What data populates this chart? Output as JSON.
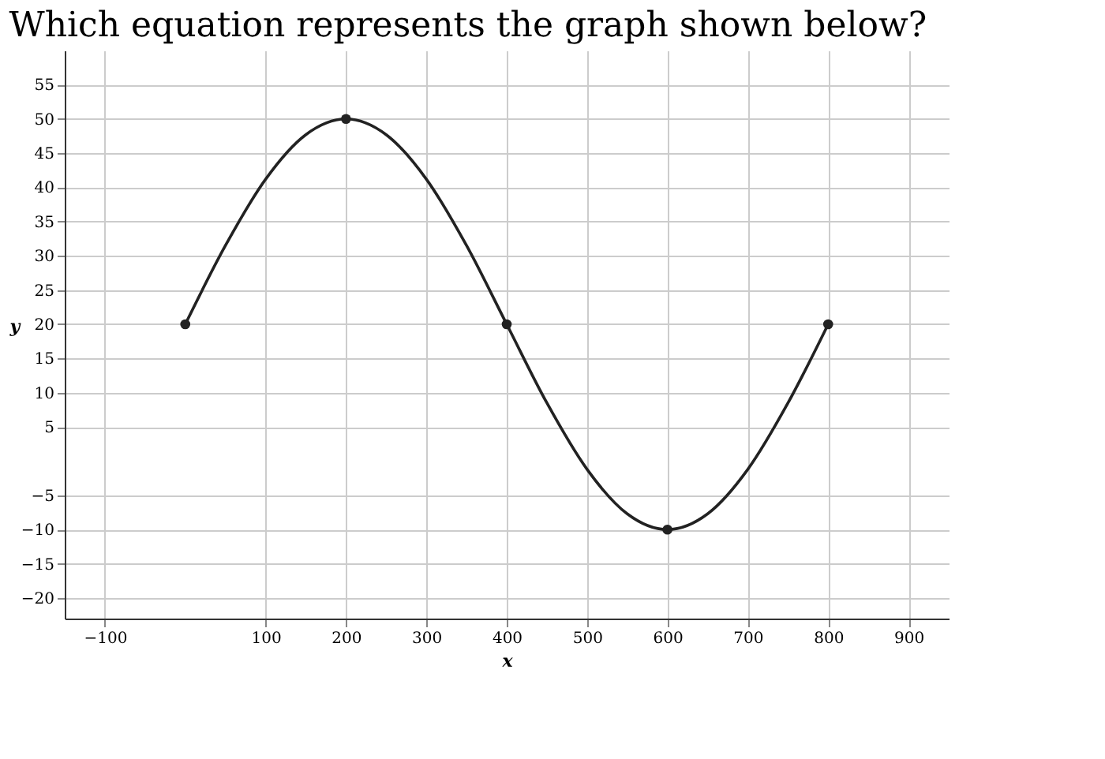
{
  "chart_data": {
    "type": "line",
    "title": "Which equation represents the graph shown below?",
    "xlabel": "x",
    "ylabel": "y",
    "series": [
      {
        "color": "#222222",
        "marker": "none",
        "x": [
          0,
          50,
          100,
          150,
          200,
          250,
          300,
          350,
          400,
          450,
          500,
          550,
          600,
          650,
          700,
          750,
          800
        ],
        "values": [
          20,
          31.5,
          41.2,
          47.7,
          50,
          47.7,
          41.2,
          31.5,
          20,
          8.5,
          -1.2,
          -7.7,
          -10,
          -7.7,
          -1.2,
          8.5,
          20
        ]
      },
      {
        "type": "scatter",
        "color": "#222222",
        "marker": "circle",
        "x": [
          0,
          200,
          400,
          600,
          800
        ],
        "values": [
          20,
          50,
          20,
          -10,
          20
        ]
      }
    ],
    "xlim": [
      -150,
      950
    ],
    "ylim": [
      -23,
      60
    ],
    "xticks": [
      -100,
      100,
      200,
      300,
      400,
      500,
      600,
      700,
      800,
      900
    ],
    "yticks": [
      -20,
      -15,
      -10,
      -5,
      5,
      10,
      15,
      20,
      25,
      30,
      35,
      40,
      45,
      50,
      55
    ],
    "grid": true
  }
}
